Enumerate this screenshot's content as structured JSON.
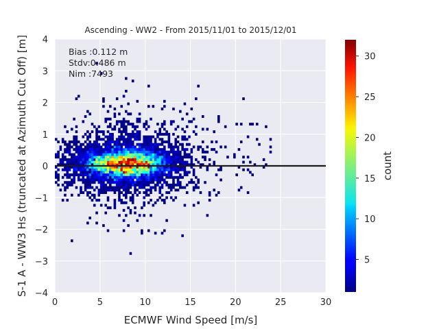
{
  "chart_data": {
    "type": "heatmap",
    "title": "Ascending - WW2 - From 2015/11/01 to 2015/12/01",
    "xlabel": "ECMWF Wind Speed [m/s]",
    "ylabel": "S-1 A - WW3 Hs (truncated at Azimuth Cut Off) [m]",
    "xlim": [
      0,
      30
    ],
    "ylim": [
      -4,
      4
    ],
    "xticks": [
      "0",
      "5",
      "10",
      "15",
      "20",
      "25",
      "30"
    ],
    "yticks": [
      "4",
      "3",
      "2",
      "1",
      "0",
      "−1",
      "−2",
      "−3",
      "−4"
    ],
    "grid": true,
    "reference_line_y": 0,
    "colormap": "jet",
    "colorbar": {
      "label": "count",
      "range": [
        1,
        32
      ],
      "ticks": [
        "5",
        "10",
        "15",
        "20",
        "25",
        "30"
      ]
    },
    "stats": {
      "bias": "Bias :0.112 m",
      "stdv": "Stdv:0.486 m",
      "nim": "Nim :7493"
    },
    "density_peak": {
      "x": 8,
      "y": 0.05,
      "count": 32
    },
    "colors": {
      "background": "#eaeaf2",
      "grid": "#ffffff",
      "line": "#1a1a1a"
    }
  }
}
